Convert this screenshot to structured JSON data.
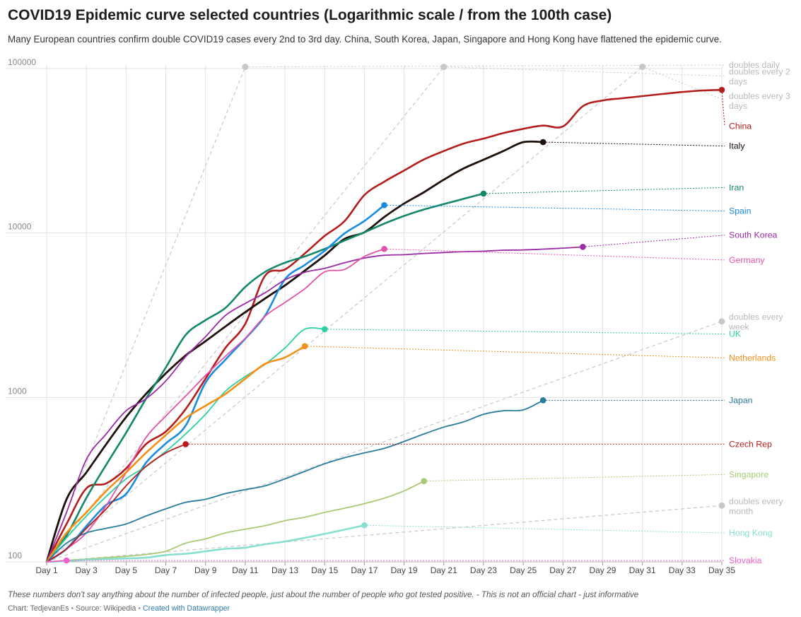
{
  "header": {
    "title": "COVID19 Epidemic curve selected countries (Logarithmic scale / from the 100th case)",
    "subtitle": "Many European countries confirm double COVID19 cases every 2nd to 3rd day. China, South Korea, Japan, Singapore and Hong Kong have flattened the epidemic curve."
  },
  "footer": {
    "note": "These numbers don't say anything about the number of infected people, just about the number of people who got tested positive. - This is not an official chart - just informative",
    "chart_by": "Chart: TedjevanEs",
    "source": "Source: Wikipedia",
    "created_with": "Created with Datawrapper",
    "separator": "•"
  },
  "colors": {
    "grid": "#e2e2e2",
    "axis_text": "#888888",
    "reference": "#c8c8c8"
  },
  "chart_data": {
    "type": "line",
    "title": "COVID19 Epidemic curve selected countries (Logarithmic scale / from the 100th case)",
    "xlabel": "",
    "ylabel": "",
    "y_scale": "log",
    "ylim": [
      100,
      100000
    ],
    "xlim": [
      1,
      35
    ],
    "grid": true,
    "legend": "direct labels at right",
    "y_ticks": [
      100,
      1000,
      10000,
      100000
    ],
    "y_tick_labels": [
      "100",
      "1000",
      "10000",
      "100000"
    ],
    "x_ticks": [
      1,
      3,
      5,
      7,
      9,
      11,
      13,
      15,
      17,
      19,
      21,
      23,
      25,
      27,
      29,
      31,
      33,
      35
    ],
    "x_tick_labels": [
      "Day 1",
      "Day 3",
      "Day 5",
      "Day 7",
      "Day 9",
      "Day 11",
      "Day 13",
      "Day 15",
      "Day 17",
      "Day 19",
      "Day 21",
      "Day 23",
      "Day 25",
      "Day 27",
      "Day 29",
      "Day 31",
      "Day 33",
      "Day 35"
    ],
    "series": [
      {
        "name": "China",
        "color": "#b51d1d",
        "width": 2.6,
        "x": [
          1,
          2,
          3,
          4,
          5,
          6,
          7,
          8,
          9,
          10,
          11,
          12,
          13,
          14,
          15,
          16,
          17,
          18,
          19,
          20,
          21,
          22,
          23,
          24,
          25,
          26,
          27,
          28,
          29,
          30,
          31,
          32,
          33,
          34,
          35
        ],
        "y": [
          100,
          170,
          280,
          300,
          370,
          520,
          620,
          850,
          1300,
          2000,
          2800,
          5500,
          6000,
          7500,
          9600,
          11800,
          17000,
          20500,
          24000,
          28000,
          31500,
          35000,
          37500,
          40500,
          43000,
          45000,
          44500,
          59000,
          64000,
          66000,
          68000,
          70000,
          72000,
          73500,
          74200
        ],
        "label_y": 44700
      },
      {
        "name": "Italy",
        "color": "#1f0f0b",
        "width": 2.8,
        "x": [
          1,
          2,
          3,
          4,
          5,
          6,
          7,
          8,
          9,
          10,
          11,
          12,
          13,
          14,
          15,
          16,
          17,
          18,
          19,
          20,
          21,
          22,
          23,
          24,
          25,
          26
        ],
        "y": [
          100,
          240,
          350,
          520,
          760,
          1050,
          1400,
          1800,
          2200,
          2700,
          3300,
          4000,
          4800,
          5900,
          7300,
          9200,
          10100,
          12500,
          15100,
          17700,
          21100,
          24700,
          27900,
          31500,
          35700,
          35700
        ],
        "label_y": 33800
      },
      {
        "name": "Iran",
        "color": "#14876b",
        "width": 2.6,
        "x": [
          1,
          2,
          3,
          4,
          5,
          6,
          7,
          8,
          9,
          10,
          11,
          12,
          13,
          14,
          15,
          16,
          17,
          18,
          19,
          20,
          21,
          22,
          23
        ],
        "y": [
          100,
          145,
          245,
          390,
          610,
          980,
          1520,
          2400,
          2950,
          3500,
          4700,
          5800,
          6600,
          7200,
          8000,
          9000,
          10100,
          11400,
          12700,
          13900,
          14990,
          16150,
          17360
        ],
        "label_y": 18900
      },
      {
        "name": "Spain",
        "color": "#1a8ce0",
        "width": 2.6,
        "x": [
          1,
          2,
          3,
          4,
          5,
          6,
          7,
          8,
          9,
          10,
          11,
          12,
          13,
          14,
          15,
          16,
          17,
          18
        ],
        "y": [
          100,
          120,
          165,
          222,
          259,
          400,
          525,
          674,
          1231,
          1695,
          2277,
          3146,
          5232,
          6391,
          7798,
          9942,
          11826,
          14769
        ],
        "label_y": 13600
      },
      {
        "name": "South Korea",
        "color": "#9b2ca6",
        "width": 1.8,
        "x": [
          1,
          2,
          3,
          4,
          5,
          6,
          7,
          8,
          9,
          10,
          11,
          12,
          13,
          14,
          15,
          16,
          17,
          18,
          19,
          20,
          21,
          22,
          23,
          24,
          25,
          26,
          27,
          28
        ],
        "y": [
          100,
          200,
          420,
          600,
          830,
          980,
          1260,
          1770,
          2340,
          3150,
          3730,
          4330,
          5190,
          5770,
          6090,
          6590,
          7040,
          7320,
          7380,
          7510,
          7610,
          7700,
          7750,
          7860,
          7890,
          7980,
          8090,
          8230
        ],
        "label_y": 9700
      },
      {
        "name": "Germany",
        "color": "#e354a8",
        "width": 1.8,
        "x": [
          1,
          2,
          3,
          4,
          5,
          6,
          7,
          8,
          9,
          10,
          11,
          12,
          13,
          14,
          15,
          16,
          17,
          18
        ],
        "y": [
          100,
          120,
          150,
          220,
          350,
          570,
          770,
          1020,
          1360,
          1780,
          2290,
          3120,
          3780,
          4580,
          5800,
          6000,
          7200,
          8000
        ],
        "label_y": 6850
      },
      {
        "name": "UK",
        "color": "#2bd1a2",
        "width": 1.8,
        "x": [
          1,
          2,
          3,
          4,
          5,
          6,
          7,
          8,
          9,
          10,
          11,
          12,
          13,
          14,
          15
        ],
        "y": [
          100,
          140,
          190,
          250,
          320,
          380,
          470,
          600,
          790,
          1090,
          1340,
          1590,
          2000,
          2600,
          2600
        ],
        "label_y": 2430
      },
      {
        "name": "Netherlands",
        "color": "#f48f16",
        "width": 2.6,
        "x": [
          1,
          2,
          3,
          4,
          5,
          6,
          7,
          8,
          9,
          10,
          11,
          12,
          13,
          14
        ],
        "y": [
          100,
          150,
          200,
          270,
          350,
          460,
          590,
          750,
          890,
          1050,
          1300,
          1600,
          1750,
          2050
        ],
        "label_y": 1740
      },
      {
        "name": "Japan",
        "color": "#2a7c9c",
        "width": 1.8,
        "x": [
          1,
          2,
          3,
          4,
          5,
          6,
          7,
          8,
          9,
          10,
          11,
          12,
          13,
          14,
          15,
          16,
          17,
          18,
          19,
          20,
          21,
          22,
          23,
          24,
          25,
          26
        ],
        "y": [
          100,
          130,
          150,
          160,
          170,
          190,
          210,
          230,
          240,
          260,
          275,
          290,
          320,
          355,
          395,
          430,
          460,
          490,
          540,
          600,
          660,
          710,
          790,
          830,
          840,
          960
        ],
        "label_y": 960
      },
      {
        "name": "Czech Rep",
        "color": "#b51d1d",
        "width": 1.8,
        "x": [
          1,
          2,
          3,
          4,
          5,
          6,
          7,
          8
        ],
        "y": [
          100,
          120,
          160,
          210,
          290,
          380,
          460,
          520
        ],
        "label_y": 520
      },
      {
        "name": "Singapore",
        "color": "#a9c972",
        "width": 1.8,
        "x": [
          1,
          2,
          3,
          4,
          5,
          6,
          7,
          8,
          9,
          10,
          11,
          12,
          13,
          14,
          15,
          16,
          17,
          18,
          19,
          20
        ],
        "y": [
          100,
          102,
          104,
          106,
          108,
          111,
          116,
          130,
          138,
          150,
          158,
          166,
          178,
          187,
          200,
          212,
          226,
          244,
          270,
          310
        ],
        "label_y": 340
      },
      {
        "name": "Hong Kong",
        "color": "#86dfcf",
        "width": 2.6,
        "x": [
          1,
          2,
          3,
          4,
          5,
          6,
          7,
          8,
          9,
          10,
          11,
          12,
          13,
          14,
          15,
          16,
          17
        ],
        "y": [
          100,
          101,
          103,
          104,
          105,
          106,
          110,
          112,
          116,
          120,
          122,
          128,
          133,
          140,
          148,
          157,
          167
        ],
        "label_y": 150
      },
      {
        "name": "Slovakia",
        "color": "#f25fc8",
        "width": 1.8,
        "x": [
          1,
          2
        ],
        "y": [
          100,
          102
        ],
        "label_y": 102
      }
    ],
    "reference_lines": [
      {
        "name": "doubles  daily",
        "label_lines": [
          "doubles  daily"
        ],
        "x": [
          1,
          11
        ],
        "y": [
          100,
          102400
        ],
        "extend_to_y": 105000
      },
      {
        "name": "doubles every 2 days",
        "label_lines": [
          "doubles every 2",
          "days"
        ],
        "x": [
          1,
          21
        ],
        "y": [
          100,
          102400
        ],
        "extend_to_y": 90000
      },
      {
        "name": "doubles every 3 days",
        "label_lines": [
          "doubles every 3",
          "days"
        ],
        "x": [
          1,
          31
        ],
        "y": [
          100,
          102400
        ],
        "extend_to_y": 64000
      },
      {
        "name": "doubles every week",
        "label_lines": [
          "doubles every",
          "week"
        ],
        "x": [
          1,
          35
        ],
        "y": [
          100,
          2900
        ],
        "extend_to_y": 2900
      },
      {
        "name": "doubles every month",
        "label_lines": [
          "doubles every",
          "month"
        ],
        "x": [
          1,
          35
        ],
        "y": [
          100,
          220
        ],
        "extend_to_y": 220
      }
    ]
  }
}
